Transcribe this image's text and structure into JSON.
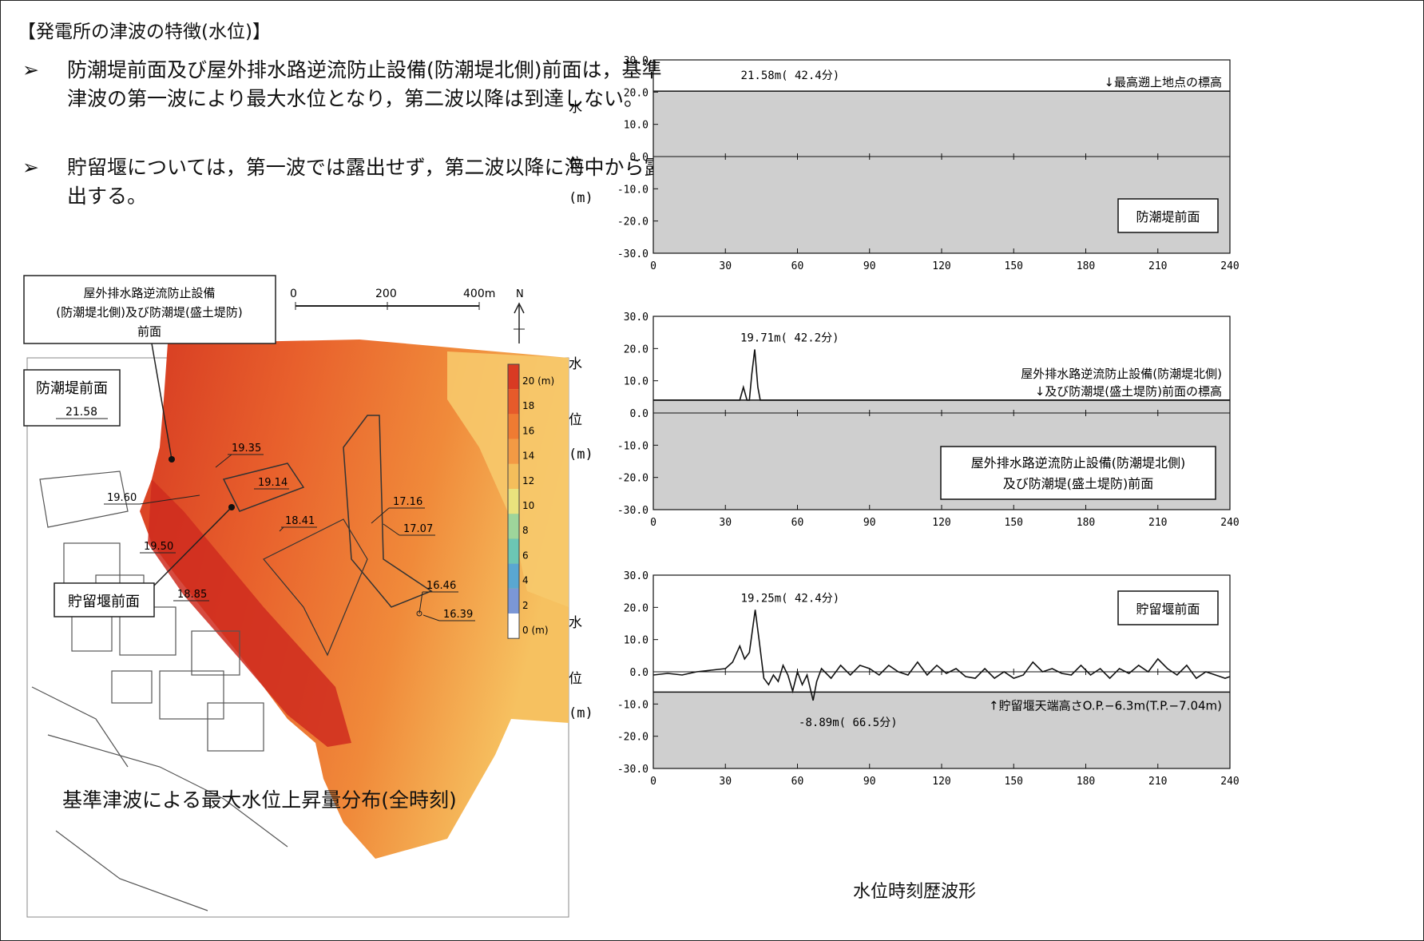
{
  "heading": "【発電所の津波の特徴(水位)】",
  "bullets": [
    {
      "marker": "➢",
      "text": "防潮堤前面及び屋外排水路逆流防止設備(防潮堤北側)前面は，基準津波の第一波により最大水位となり，第二波以降は到達しない。"
    },
    {
      "marker": "➢",
      "text": "貯留堰については，第一波では露出せず，第二波以降に海中から露出する。"
    }
  ],
  "map": {
    "caption": "基準津波による最大水位上昇量分布(全時刻)",
    "scale_bar": {
      "ticks": [
        "0",
        "200",
        "400m"
      ]
    },
    "north": "N",
    "colorbar": {
      "labels": [
        "20 (m)",
        "18",
        "16",
        "14",
        "12",
        "10",
        "8",
        "6",
        "4",
        "2",
        "0 (m)"
      ],
      "colors": [
        "#d93a23",
        "#e65a2a",
        "#ef7b32",
        "#f39a44",
        "#f4be5b",
        "#e9e27d",
        "#9ed59b",
        "#6cc6b4",
        "#5aa7d1",
        "#7b97d6",
        "#ffffff"
      ]
    },
    "callouts": {
      "outfall": [
        "屋外排水路逆流防止設備",
        "(防潮堤北側)及び防潮堤(盛土堤防)",
        "前面"
      ],
      "seawall": "防潮堤前面",
      "reservoir": "貯留堰前面"
    },
    "values": [
      "21.58",
      "19.35",
      "19.14",
      "19.60",
      "18.41",
      "17.16",
      "17.07",
      "19.50",
      "18.85",
      "16.46",
      "16.39"
    ]
  },
  "timeseries_title": "水位時刻歴波形",
  "y_axis_label": [
    "水",
    "位",
    "(m)"
  ],
  "chart_data": [
    {
      "type": "line",
      "title": "防潮堤前面",
      "ylim": [
        -30,
        30
      ],
      "xlim": [
        0,
        240
      ],
      "yticks": [
        "30.0",
        "20.0",
        "10.0",
        "0.0",
        "-10.0",
        "-20.0",
        "-30.0"
      ],
      "xticks": [
        "0",
        "30",
        "60",
        "90",
        "120",
        "150",
        "180",
        "210",
        "240"
      ],
      "ground_level": 20.3,
      "ground_label": "↓最高遡上地点の標高",
      "annotations": [
        {
          "text": "21.58m( 42.4分)",
          "x": 42.4,
          "y": 21.58
        }
      ],
      "series": [
        {
          "x": [
            0,
            240
          ],
          "values": [
            null,
            null
          ]
        }
      ]
    },
    {
      "type": "line",
      "title": "屋外排水路逆流防止設備(防潮堤北側)及び防潮堤(盛土堤防)前面",
      "ylim": [
        -30,
        30
      ],
      "xlim": [
        0,
        240
      ],
      "yticks": [
        "30.0",
        "20.0",
        "10.0",
        "0.0",
        "-10.0",
        "-20.0",
        "-30.0"
      ],
      "xticks": [
        "0",
        "30",
        "60",
        "90",
        "120",
        "150",
        "180",
        "210",
        "240"
      ],
      "ground_level": 4.0,
      "ground_label": [
        "屋外排水路逆流防止設備(防潮堤北側)",
        "↓及び防潮堤(盛土堤防)前面の標高"
      ],
      "annotations": [
        {
          "text": "19.71m( 42.2分)",
          "x": 42.2,
          "y": 19.71
        }
      ],
      "series": [
        {
          "x": [
            0,
            36,
            37.5,
            39,
            40,
            41,
            42.2,
            43.5,
            44.5,
            240
          ],
          "values": [
            4,
            4,
            8,
            4,
            4,
            12,
            19.71,
            8,
            4,
            4
          ]
        }
      ]
    },
    {
      "type": "line",
      "title": "貯留堰前面",
      "ylim": [
        -30,
        30
      ],
      "xlim": [
        0,
        240
      ],
      "yticks": [
        "30.0",
        "20.0",
        "10.0",
        "0.0",
        "-10.0",
        "-20.0",
        "-30.0"
      ],
      "xticks": [
        "0",
        "30",
        "60",
        "90",
        "120",
        "150",
        "180",
        "210",
        "240"
      ],
      "ground_level": -6.3,
      "ground_label": "↑貯留堰天端高さO.P.−6.3m(T.P.−7.04m)",
      "annotations": [
        {
          "text": "19.25m( 42.4分)",
          "x": 42.4,
          "y": 19.25
        },
        {
          "text": "-8.89m( 66.5分)",
          "x": 66.5,
          "y": -8.89
        }
      ],
      "series": [
        {
          "x": [
            0,
            6,
            12,
            18,
            24,
            30,
            33,
            36,
            38,
            40,
            42.4,
            44,
            46,
            48,
            50,
            52,
            54,
            56,
            58,
            60,
            62,
            64,
            66.5,
            68,
            70,
            74,
            78,
            82,
            86,
            90,
            94,
            98,
            102,
            106,
            110,
            114,
            118,
            122,
            126,
            130,
            134,
            138,
            142,
            146,
            150,
            154,
            158,
            162,
            166,
            170,
            174,
            178,
            182,
            186,
            190,
            194,
            198,
            202,
            206,
            210,
            214,
            218,
            222,
            226,
            230,
            234,
            238,
            240
          ],
          "values": [
            -1,
            -0.5,
            -1,
            0,
            0.5,
            1,
            3,
            8,
            4,
            6,
            19.25,
            10,
            -2,
            -4,
            -1,
            -3,
            2,
            -1,
            -6,
            0,
            -4,
            -1,
            -8.89,
            -3,
            1,
            -2,
            2,
            -1,
            2,
            1,
            -1,
            2,
            0,
            -1,
            3,
            -1,
            2,
            -0.5,
            1,
            -1.5,
            -2,
            1,
            -2,
            0,
            -2,
            -1,
            3,
            0,
            1,
            -0.5,
            -1,
            2,
            -1,
            1,
            -2,
            1,
            -0.5,
            2,
            0,
            4,
            1,
            -1,
            2,
            -2,
            0,
            -1,
            -2,
            -1.5
          ]
        }
      ]
    }
  ]
}
